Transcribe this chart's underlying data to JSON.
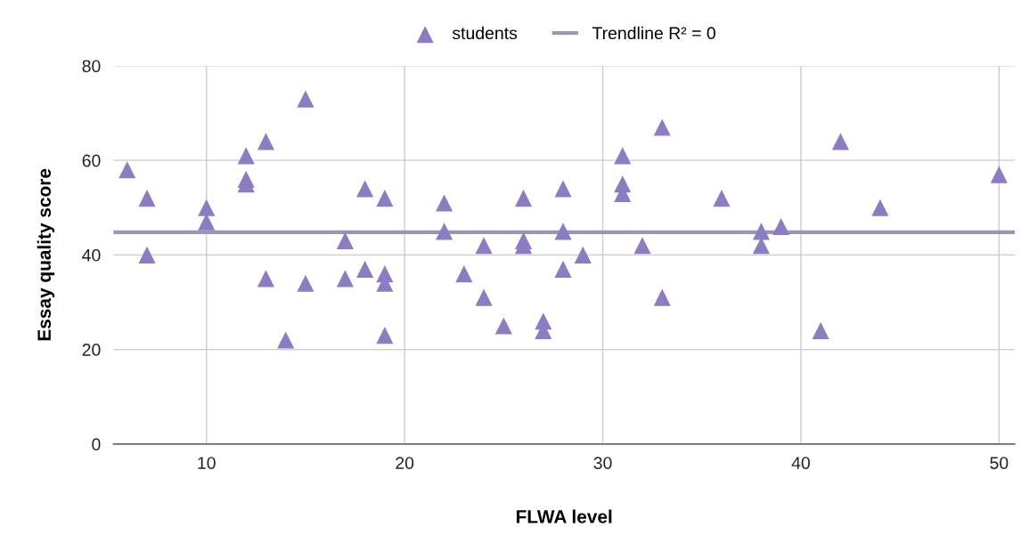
{
  "chart_data": {
    "type": "scatter",
    "xlabel": "FLWA level",
    "ylabel": "Essay quality score",
    "xlim": [
      5.3,
      50.8
    ],
    "xticks": [
      10,
      20,
      30,
      40,
      50
    ],
    "ylim": [
      0,
      80
    ],
    "yticks": [
      0,
      20,
      40,
      60,
      80
    ],
    "grid": true,
    "legend": "top",
    "series": [
      {
        "name": "students",
        "color": "#8e7cc3",
        "marker": "triangle",
        "x": [
          6,
          7,
          7,
          10,
          10,
          12,
          12,
          12,
          13,
          13,
          14,
          15,
          15,
          17,
          17,
          18,
          18,
          19,
          19,
          19,
          19,
          22,
          22,
          23,
          24,
          24,
          25,
          26,
          26,
          26,
          27,
          27,
          28,
          28,
          28,
          29,
          31,
          31,
          31,
          32,
          33,
          33,
          36,
          38,
          38,
          39,
          41,
          42,
          44,
          50
        ],
        "values": [
          58,
          52,
          40,
          50,
          47,
          61,
          56,
          55,
          64,
          35,
          22,
          73,
          34,
          43,
          35,
          54,
          37,
          52,
          36,
          34,
          23,
          51,
          45,
          36,
          42,
          31,
          25,
          52,
          43,
          42,
          26,
          24,
          54,
          45,
          37,
          40,
          61,
          55,
          53,
          42,
          67,
          31,
          52,
          45,
          42,
          46,
          24,
          64,
          50,
          57
        ]
      },
      {
        "name": "Trendline R² = 0",
        "type": "line",
        "color": "#9a95b3",
        "marker": "none",
        "x": [
          5.3,
          50.8
        ],
        "values": [
          44.8,
          44.8
        ]
      }
    ]
  }
}
